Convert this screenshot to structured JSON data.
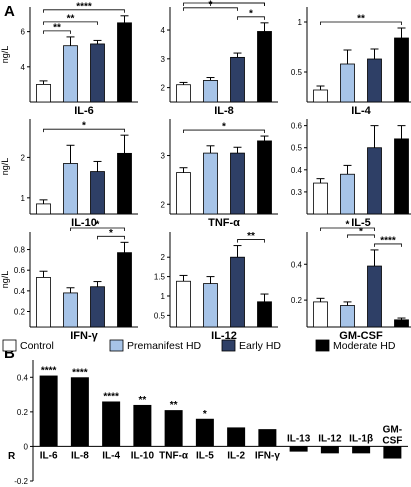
{
  "panel_labels": {
    "a": "A",
    "b": "B"
  },
  "group_legend": {
    "items": [
      {
        "label": "Control",
        "color": "#ffffff"
      },
      {
        "label": "Premanifest HD",
        "color": "#a7c4e8"
      },
      {
        "label": "Early HD",
        "color": "#2e3f66"
      },
      {
        "label": "Moderate HD",
        "color": "#000000"
      }
    ]
  },
  "chart_data": [
    {
      "type": "bar",
      "title": "IL-6",
      "ylabel": "ng/L",
      "ylim": [
        2,
        7.4
      ],
      "yticks": [
        4,
        6
      ],
      "categories": [
        "Control",
        "Premanifest HD",
        "Early HD",
        "Moderate HD"
      ],
      "values": [
        3.0,
        5.2,
        5.3,
        6.5
      ],
      "errors": [
        0.2,
        0.5,
        0.2,
        0.4
      ],
      "brackets": [
        {
          "from": 0,
          "to": 1,
          "label": "**"
        },
        {
          "from": 0,
          "to": 2,
          "label": "**"
        },
        {
          "from": 0,
          "to": 3,
          "label": "****"
        }
      ]
    },
    {
      "type": "bar",
      "title": "IL-8",
      "ylabel": "",
      "ylim": [
        1.5,
        4.8
      ],
      "yticks": [
        2,
        3,
        4
      ],
      "categories": [
        "Control",
        "Premanifest HD",
        "Early HD",
        "Moderate HD"
      ],
      "values": [
        2.1,
        2.25,
        3.05,
        3.95
      ],
      "errors": [
        0.08,
        0.1,
        0.15,
        0.3
      ],
      "brackets": [
        {
          "from": 0,
          "to": 2,
          "label": "*"
        },
        {
          "from": 1,
          "to": 3,
          "label": "****"
        },
        {
          "from": 2,
          "to": 3,
          "label": "*"
        },
        {
          "from": 0,
          "to": 3,
          "label": "****"
        }
      ]
    },
    {
      "type": "bar",
      "title": "IL-4",
      "ylabel": "",
      "ylim": [
        0.2,
        1.15
      ],
      "yticks": [
        0.5,
        1.0
      ],
      "categories": [
        "Control",
        "Premanifest HD",
        "Early HD",
        "Moderate HD"
      ],
      "values": [
        0.32,
        0.58,
        0.63,
        0.84
      ],
      "errors": [
        0.04,
        0.14,
        0.1,
        0.1
      ],
      "brackets": [
        {
          "from": 0,
          "to": 3,
          "label": "**"
        }
      ]
    },
    {
      "type": "bar",
      "title": "IL-10",
      "ylabel": "ng/L",
      "ylim": [
        0.6,
        2.95
      ],
      "yticks": [
        1,
        2
      ],
      "categories": [
        "Control",
        "Premanifest HD",
        "Early HD",
        "Moderate HD"
      ],
      "values": [
        0.85,
        1.85,
        1.65,
        2.1
      ],
      "errors": [
        0.1,
        0.45,
        0.25,
        0.45
      ],
      "brackets": [
        {
          "from": 0,
          "to": 3,
          "label": "*"
        }
      ]
    },
    {
      "type": "bar",
      "title": "TNF-α",
      "ylabel": "",
      "ylim": [
        1.8,
        3.75
      ],
      "yticks": [
        2,
        3
      ],
      "categories": [
        "Control",
        "Premanifest HD",
        "Early HD",
        "Moderate HD"
      ],
      "values": [
        2.65,
        3.05,
        3.05,
        3.3
      ],
      "errors": [
        0.1,
        0.15,
        0.12,
        0.1
      ],
      "brackets": [
        {
          "from": 0,
          "to": 3,
          "label": "*"
        }
      ]
    },
    {
      "type": "bar",
      "title": "IL-5",
      "ylabel": "",
      "ylim": [
        0.2,
        0.63
      ],
      "yticks": [
        0.3,
        0.4,
        0.5,
        0.6
      ],
      "categories": [
        "Control",
        "Premanifest HD",
        "Early HD",
        "Moderate HD"
      ],
      "values": [
        0.34,
        0.38,
        0.5,
        0.54
      ],
      "errors": [
        0.02,
        0.04,
        0.1,
        0.06
      ],
      "brackets": []
    },
    {
      "type": "bar",
      "title": "IFN-γ",
      "ylabel": "ng/L",
      "ylim": [
        0.05,
        0.97
      ],
      "yticks": [
        0.2,
        0.4,
        0.6,
        0.8
      ],
      "categories": [
        "Control",
        "Premanifest HD",
        "Early HD",
        "Moderate HD"
      ],
      "values": [
        0.53,
        0.38,
        0.44,
        0.77
      ],
      "errors": [
        0.06,
        0.05,
        0.05,
        0.1
      ],
      "brackets": [
        {
          "from": 2,
          "to": 3,
          "label": "*"
        },
        {
          "from": 1,
          "to": 3,
          "label": "*"
        }
      ]
    },
    {
      "type": "bar",
      "title": "IL-12",
      "ylabel": "",
      "ylim": [
        0.2,
        2.65
      ],
      "yticks": [
        0.5,
        1.0,
        1.5,
        2.0
      ],
      "categories": [
        "Control",
        "Premanifest HD",
        "Early HD",
        "Moderate HD"
      ],
      "values": [
        1.38,
        1.32,
        2.0,
        0.85
      ],
      "errors": [
        0.15,
        0.18,
        0.3,
        0.2
      ],
      "brackets": [
        {
          "from": 2,
          "to": 3,
          "label": "**"
        }
      ]
    },
    {
      "type": "bar",
      "title": "GM-CSF",
      "ylabel": "",
      "ylim": [
        0.05,
        0.58
      ],
      "yticks": [
        0.2,
        0.4
      ],
      "categories": [
        "Control",
        "Premanifest HD",
        "Early HD",
        "Moderate HD"
      ],
      "values": [
        0.19,
        0.17,
        0.39,
        0.09
      ],
      "errors": [
        0.02,
        0.02,
        0.09,
        0.01
      ],
      "brackets": [
        {
          "from": 2,
          "to": 3,
          "label": "****"
        },
        {
          "from": 1,
          "to": 2,
          "label": "*"
        },
        {
          "from": 0,
          "to": 2,
          "label": "*"
        }
      ]
    },
    {
      "type": "bar",
      "title": "",
      "ylabel": "R",
      "ylim": [
        -0.2,
        0.5
      ],
      "yticks": [
        -0.2,
        0,
        0.2,
        0.4
      ],
      "categories": [
        "IL-6",
        "IL-8",
        "IL-4",
        "IL-10",
        "TNF-α",
        "IL-5",
        "IL-2",
        "IFN-γ",
        "IL-13",
        "IL-12",
        "IL-1β",
        "GM-CSF"
      ],
      "values": [
        0.41,
        0.4,
        0.26,
        0.24,
        0.21,
        0.16,
        0.11,
        0.1,
        -0.03,
        -0.04,
        -0.04,
        -0.07
      ],
      "significance": [
        "****",
        "****",
        "****",
        "**",
        "**",
        "*",
        "",
        "",
        "",
        "",
        "",
        ""
      ]
    }
  ]
}
